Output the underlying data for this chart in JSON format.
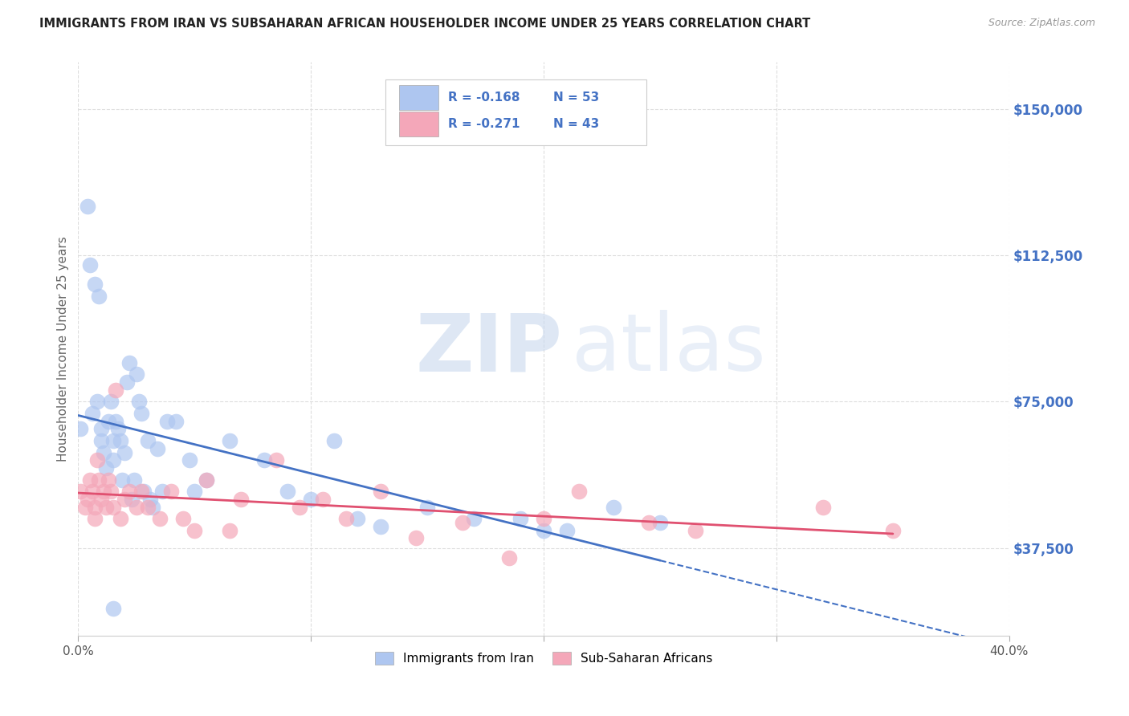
{
  "title": "IMMIGRANTS FROM IRAN VS SUBSAHARAN AFRICAN HOUSEHOLDER INCOME UNDER 25 YEARS CORRELATION CHART",
  "source": "Source: ZipAtlas.com",
  "ylabel": "Householder Income Under 25 years",
  "yticks": [
    37500,
    75000,
    112500,
    150000
  ],
  "ytick_labels": [
    "$37,500",
    "$75,000",
    "$112,500",
    "$150,000"
  ],
  "xmin": 0.0,
  "xmax": 0.4,
  "ymin": 15000,
  "ymax": 162000,
  "legend1_R": "-0.168",
  "legend1_N": "53",
  "legend2_R": "-0.271",
  "legend2_N": "43",
  "legend_bottom_label1": "Immigrants from Iran",
  "legend_bottom_label2": "Sub-Saharan Africans",
  "color_iran": "#aec6f0",
  "color_africa": "#f4a7b9",
  "color_iran_line": "#4472c4",
  "color_africa_line": "#e05070",
  "color_ylabel": "#666666",
  "color_title": "#222222",
  "color_ytick": "#4472c4",
  "color_source": "#999999",
  "watermark_zip": "ZIP",
  "watermark_atlas": "atlas",
  "iran_x": [
    0.001,
    0.004,
    0.005,
    0.006,
    0.007,
    0.008,
    0.009,
    0.01,
    0.01,
    0.011,
    0.012,
    0.013,
    0.014,
    0.015,
    0.015,
    0.016,
    0.017,
    0.018,
    0.019,
    0.02,
    0.021,
    0.022,
    0.023,
    0.024,
    0.025,
    0.026,
    0.027,
    0.028,
    0.03,
    0.031,
    0.032,
    0.034,
    0.036,
    0.038,
    0.042,
    0.048,
    0.055,
    0.065,
    0.08,
    0.09,
    0.1,
    0.11,
    0.13,
    0.15,
    0.17,
    0.19,
    0.2,
    0.21,
    0.23,
    0.25,
    0.015,
    0.12,
    0.05
  ],
  "iran_y": [
    68000,
    125000,
    110000,
    72000,
    105000,
    75000,
    102000,
    68000,
    65000,
    62000,
    58000,
    70000,
    75000,
    65000,
    60000,
    70000,
    68000,
    65000,
    55000,
    62000,
    80000,
    85000,
    50000,
    55000,
    82000,
    75000,
    72000,
    52000,
    65000,
    50000,
    48000,
    63000,
    52000,
    70000,
    70000,
    60000,
    55000,
    65000,
    60000,
    52000,
    50000,
    65000,
    43000,
    48000,
    45000,
    45000,
    42000,
    42000,
    48000,
    44000,
    22000,
    45000,
    52000
  ],
  "africa_x": [
    0.001,
    0.003,
    0.004,
    0.005,
    0.006,
    0.007,
    0.007,
    0.008,
    0.009,
    0.01,
    0.011,
    0.012,
    0.013,
    0.014,
    0.015,
    0.016,
    0.018,
    0.02,
    0.022,
    0.025,
    0.027,
    0.03,
    0.035,
    0.04,
    0.045,
    0.05,
    0.055,
    0.065,
    0.07,
    0.085,
    0.095,
    0.105,
    0.115,
    0.13,
    0.145,
    0.165,
    0.185,
    0.2,
    0.215,
    0.245,
    0.265,
    0.32,
    0.35
  ],
  "africa_y": [
    52000,
    48000,
    50000,
    55000,
    52000,
    48000,
    45000,
    60000,
    55000,
    50000,
    52000,
    48000,
    55000,
    52000,
    48000,
    78000,
    45000,
    50000,
    52000,
    48000,
    52000,
    48000,
    45000,
    52000,
    45000,
    42000,
    55000,
    42000,
    50000,
    60000,
    48000,
    50000,
    45000,
    52000,
    40000,
    44000,
    35000,
    45000,
    52000,
    44000,
    42000,
    48000,
    42000
  ]
}
